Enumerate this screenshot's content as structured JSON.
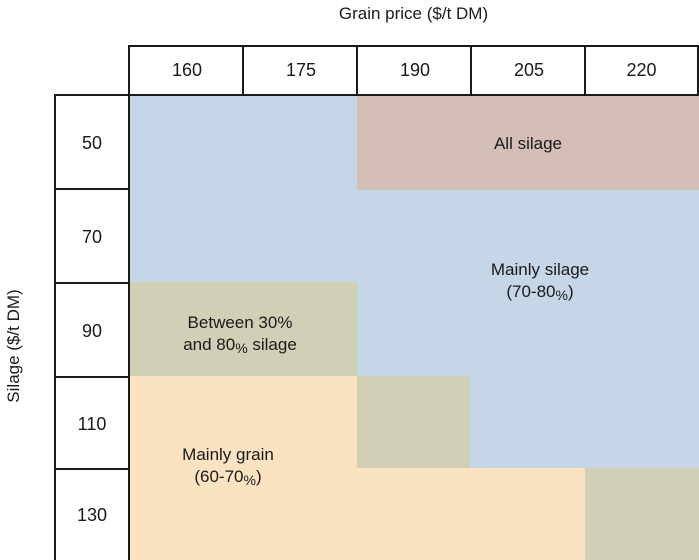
{
  "x_axis_title": "Grain price ($/t DM)",
  "y_axis_title": "Silage ($/t DM)",
  "columns": [
    "160",
    "175",
    "190",
    "205",
    "220"
  ],
  "rows": [
    "50",
    "70",
    "90",
    "110",
    "130"
  ],
  "regions": {
    "all_silage": {
      "label": "All silage",
      "color": "#d4bfb8"
    },
    "mainly_silage": {
      "line1": "Mainly silage",
      "line2_pre": "(70-80",
      "line2_pct": "%",
      "line2_post": ")",
      "color": "#c5d6e6"
    },
    "between": {
      "line1": "Between 30%",
      "line2_pre": "and 80",
      "line2_pct": "%",
      "line2_post": " silage",
      "color": "#d1cfb5"
    },
    "mainly_grain": {
      "line1": "Mainly grain",
      "line2_pre": "(60-70",
      "line2_pct": "%",
      "line2_post": ")",
      "color": "#fbe3c2"
    }
  },
  "chart_data": {
    "type": "table",
    "x_label": "Grain price ($/t DM)",
    "y_label": "Silage ($/t DM)",
    "x_categories": [
      "160",
      "175",
      "190",
      "205",
      "220"
    ],
    "y_categories": [
      "50",
      "70",
      "90",
      "110",
      "130"
    ],
    "cells": [
      [
        "Mainly silage (70-80%)",
        "Mainly silage (70-80%)",
        "All silage",
        "All silage",
        "All silage"
      ],
      [
        "Mainly silage (70-80%)",
        "Mainly silage (70-80%)",
        "Mainly silage (70-80%)",
        "Mainly silage (70-80%)",
        "Mainly silage (70-80%)"
      ],
      [
        "Between 30% and 80% silage",
        "Between 30% and 80% silage",
        "Mainly silage (70-80%)",
        "Mainly silage (70-80%)",
        "Mainly silage (70-80%)"
      ],
      [
        "Mainly grain (60-70%)",
        "Mainly grain (60-70%)",
        "Between 30% and 80% silage",
        "Mainly silage (70-80%)",
        "Mainly silage (70-80%)"
      ],
      [
        "Mainly grain (60-70%)",
        "Mainly grain (60-70%)",
        "Mainly grain (60-70%)",
        "Mainly grain (60-70%)",
        "Between 30% and 80% silage"
      ]
    ]
  }
}
